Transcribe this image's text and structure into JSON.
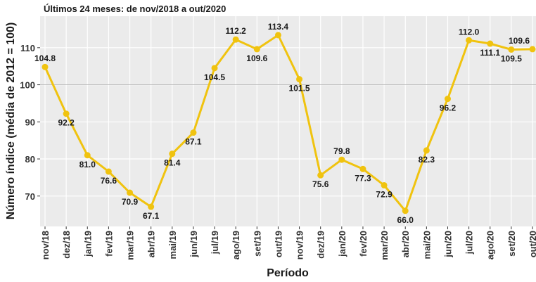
{
  "chart_data": {
    "type": "line",
    "subtitle": "Últimos 24 meses: de nov/2018 a out/2020",
    "x_label": "Período",
    "y_label": "Número índice (média de 2012 = 100)",
    "categories": [
      "nov/18",
      "dez/18",
      "jan/19",
      "fev/19",
      "mar/19",
      "abr/19",
      "mai/19",
      "jun/19",
      "jul/19",
      "ago/19",
      "set/19",
      "out/19",
      "nov/19",
      "dez/19",
      "jan/20",
      "fev/20",
      "mar/20",
      "abr/20",
      "mai/20",
      "jun/20",
      "jul/20",
      "ago/20",
      "set/20",
      "out/20"
    ],
    "values": [
      104.8,
      92.2,
      81.0,
      76.6,
      70.9,
      67.1,
      81.4,
      87.1,
      104.5,
      112.2,
      109.6,
      113.4,
      101.5,
      75.6,
      79.8,
      77.3,
      72.9,
      66.0,
      82.3,
      96.2,
      112.0,
      111.1,
      109.5,
      109.6
    ],
    "value_labels": [
      "104.8",
      "92.2",
      "81.0",
      "76.6",
      "70.9",
      "67.1",
      "81.4",
      "87.1",
      "104.5",
      "112.2",
      "109.6",
      "113.4",
      "101.5",
      "75.6",
      "79.8",
      "77.3",
      "72.9",
      "66.0",
      "82.3",
      "96.2",
      "112.0",
      "111.1",
      "109.5",
      "109.6"
    ],
    "color": "#f0c30f",
    "ylim": [
      61.8,
      118.5
    ],
    "yticks": [
      70,
      80,
      90,
      100,
      110
    ],
    "hline": 100,
    "grid": true
  }
}
